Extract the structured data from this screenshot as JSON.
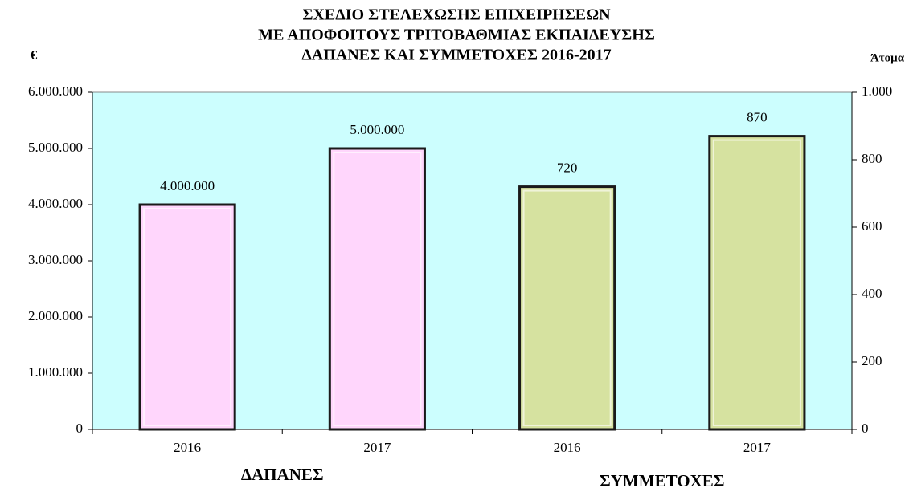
{
  "chart_data": {
    "type": "bar",
    "title": [
      "ΣΧΕΔΙΟ ΣΤΕΛΕΧΩΣΗΣ ΕΠΙΧΕΙΡΗΣΕΩΝ",
      "ΜΕ ΑΠΟΦΟΙΤΟΥΣ ΤΡΙΤΟΒΑΘΜΙΑΣ ΕΚΠΑΙΔΕΥΣΗΣ",
      "ΔΑΠΑΝΕΣ ΚΑΙ ΣΥΜΜΕΤΟΧΕΣ 2016-2017"
    ],
    "y_label": "€",
    "y2_label": "Άτομα",
    "categories": [
      "2016",
      "2017",
      "2016",
      "2017"
    ],
    "series": [
      {
        "name": "ΔΑΠΑΝΕΣ",
        "color": "#ffd6fc",
        "values": [
          4000000,
          5000000,
          null,
          null
        ],
        "value_labels": [
          "4.000.000",
          "5.000.000",
          null,
          null
        ]
      },
      {
        "name": "ΣΥΜΜΕΤΟΧΕΣ",
        "color": "#d6e2a0",
        "axis": "y2",
        "values": [
          null,
          null,
          720,
          870
        ]
      }
    ],
    "ylim": [
      0,
      6000000
    ],
    "yticks": [
      0,
      {
        "value": 1000000,
        "label": "1.000.000"
      },
      {
        "value": 2000000,
        "label": "2.000.000"
      },
      {
        "value": 3000000,
        "label": "3.000.000"
      },
      {
        "value": 4000000,
        "label": "4.000.000"
      },
      {
        "value": 5000000,
        "label": "5.000.000"
      },
      {
        "value": 6000000,
        "label": "6.000.000"
      }
    ],
    "y2lim": [
      0,
      1000
    ],
    "y2ticks": [
      0,
      200,
      400,
      600,
      800,
      {
        "value": 1000,
        "label": "1.000"
      }
    ],
    "plot_background": "#ccfefe"
  }
}
